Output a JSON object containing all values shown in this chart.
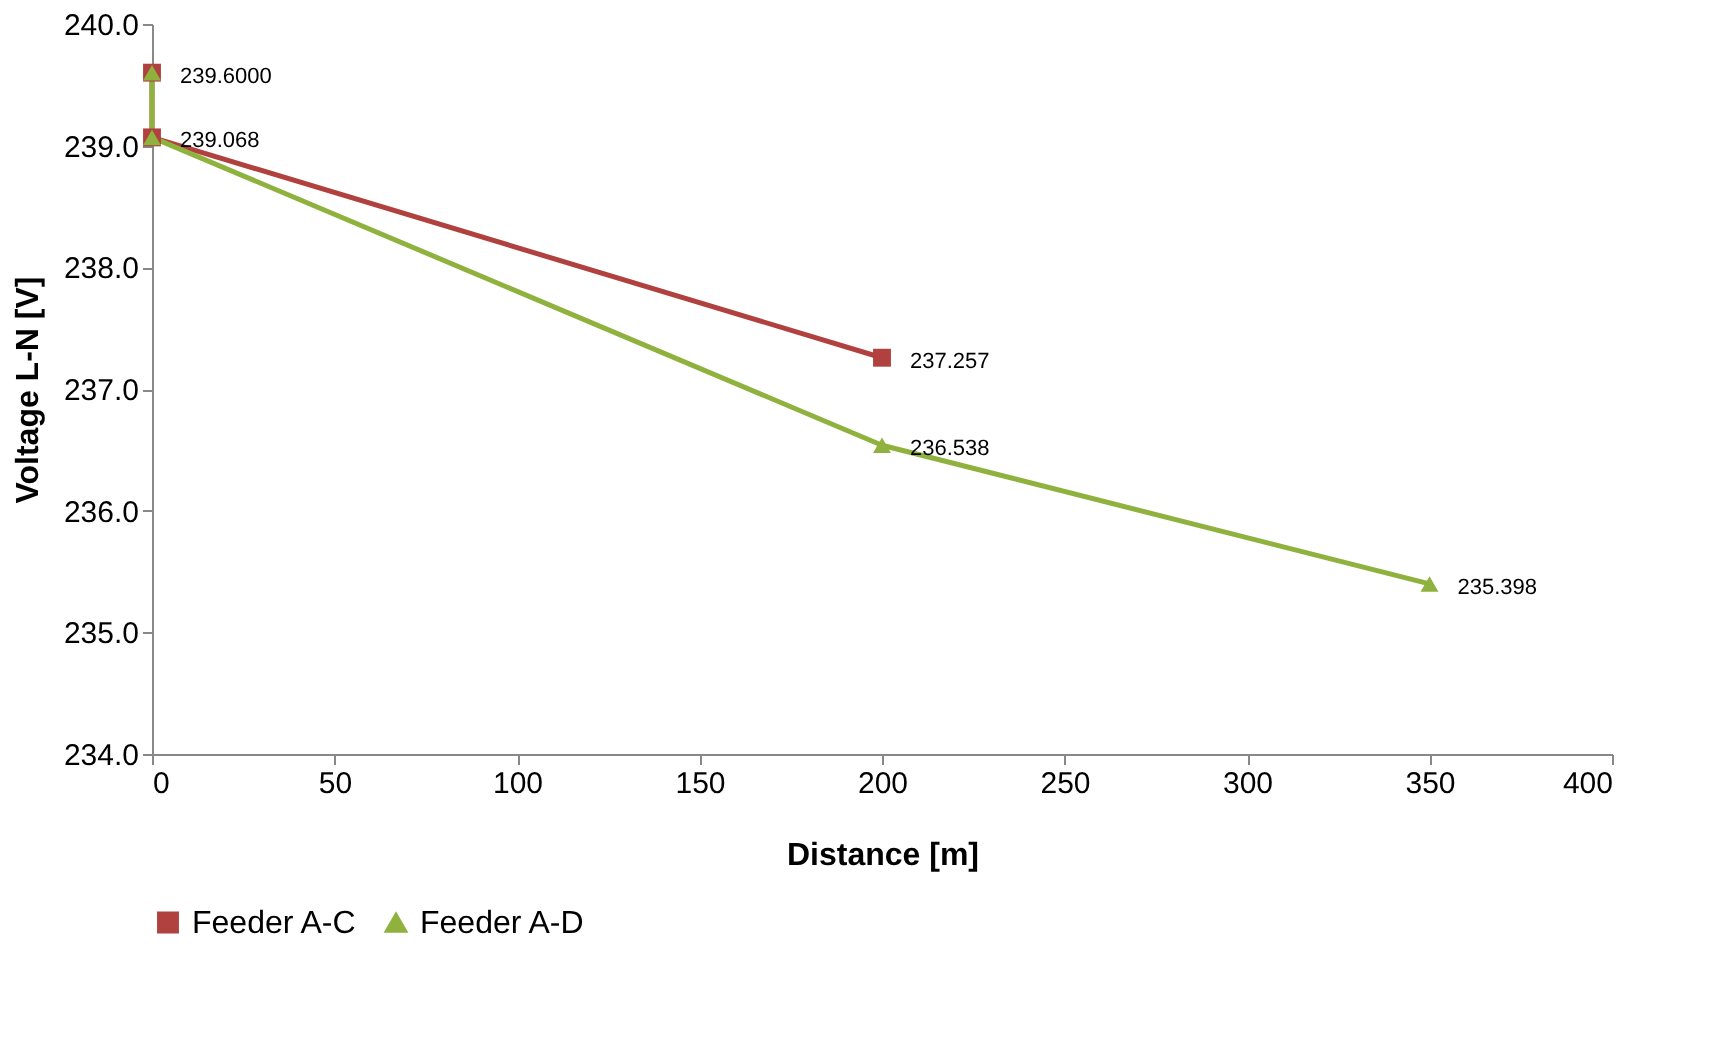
{
  "chart_data": {
    "type": "line",
    "xlabel": "Distance [m]",
    "ylabel": "Voltage L-N [V]",
    "xlim": [
      0,
      400
    ],
    "xticks": [
      0,
      50,
      100,
      150,
      200,
      250,
      300,
      350,
      400
    ],
    "ylim": [
      234,
      240
    ],
    "yticks": [
      {
        "value": 234,
        "label": "234.0"
      },
      {
        "value": 235,
        "label": "235.0"
      },
      {
        "value": 236,
        "label": "236.0"
      },
      {
        "value": 237,
        "label": "237.0"
      },
      {
        "value": 238,
        "label": "238.0"
      },
      {
        "value": 239,
        "label": "239.0"
      },
      {
        "value": 240,
        "label": "240.0"
      }
    ],
    "grid": false,
    "legend": "bottom",
    "line_style": "solid",
    "series": [
      {
        "name": "Feeder A-C",
        "color": "#b0413e",
        "marker": "square",
        "x": [
          0,
          0,
          200
        ],
        "values": [
          239.6,
          239.068,
          237.257
        ],
        "value_labels": [
          "239.6000",
          "239.068",
          "237.257"
        ]
      },
      {
        "name": "Feeder A-D",
        "color": "#8fb13e",
        "marker": "triangle",
        "x": [
          0,
          0,
          200,
          350
        ],
        "values": [
          239.6,
          239.068,
          236.538,
          235.398
        ],
        "value_labels": [
          null,
          null,
          "236.538",
          "235.398"
        ]
      }
    ]
  }
}
